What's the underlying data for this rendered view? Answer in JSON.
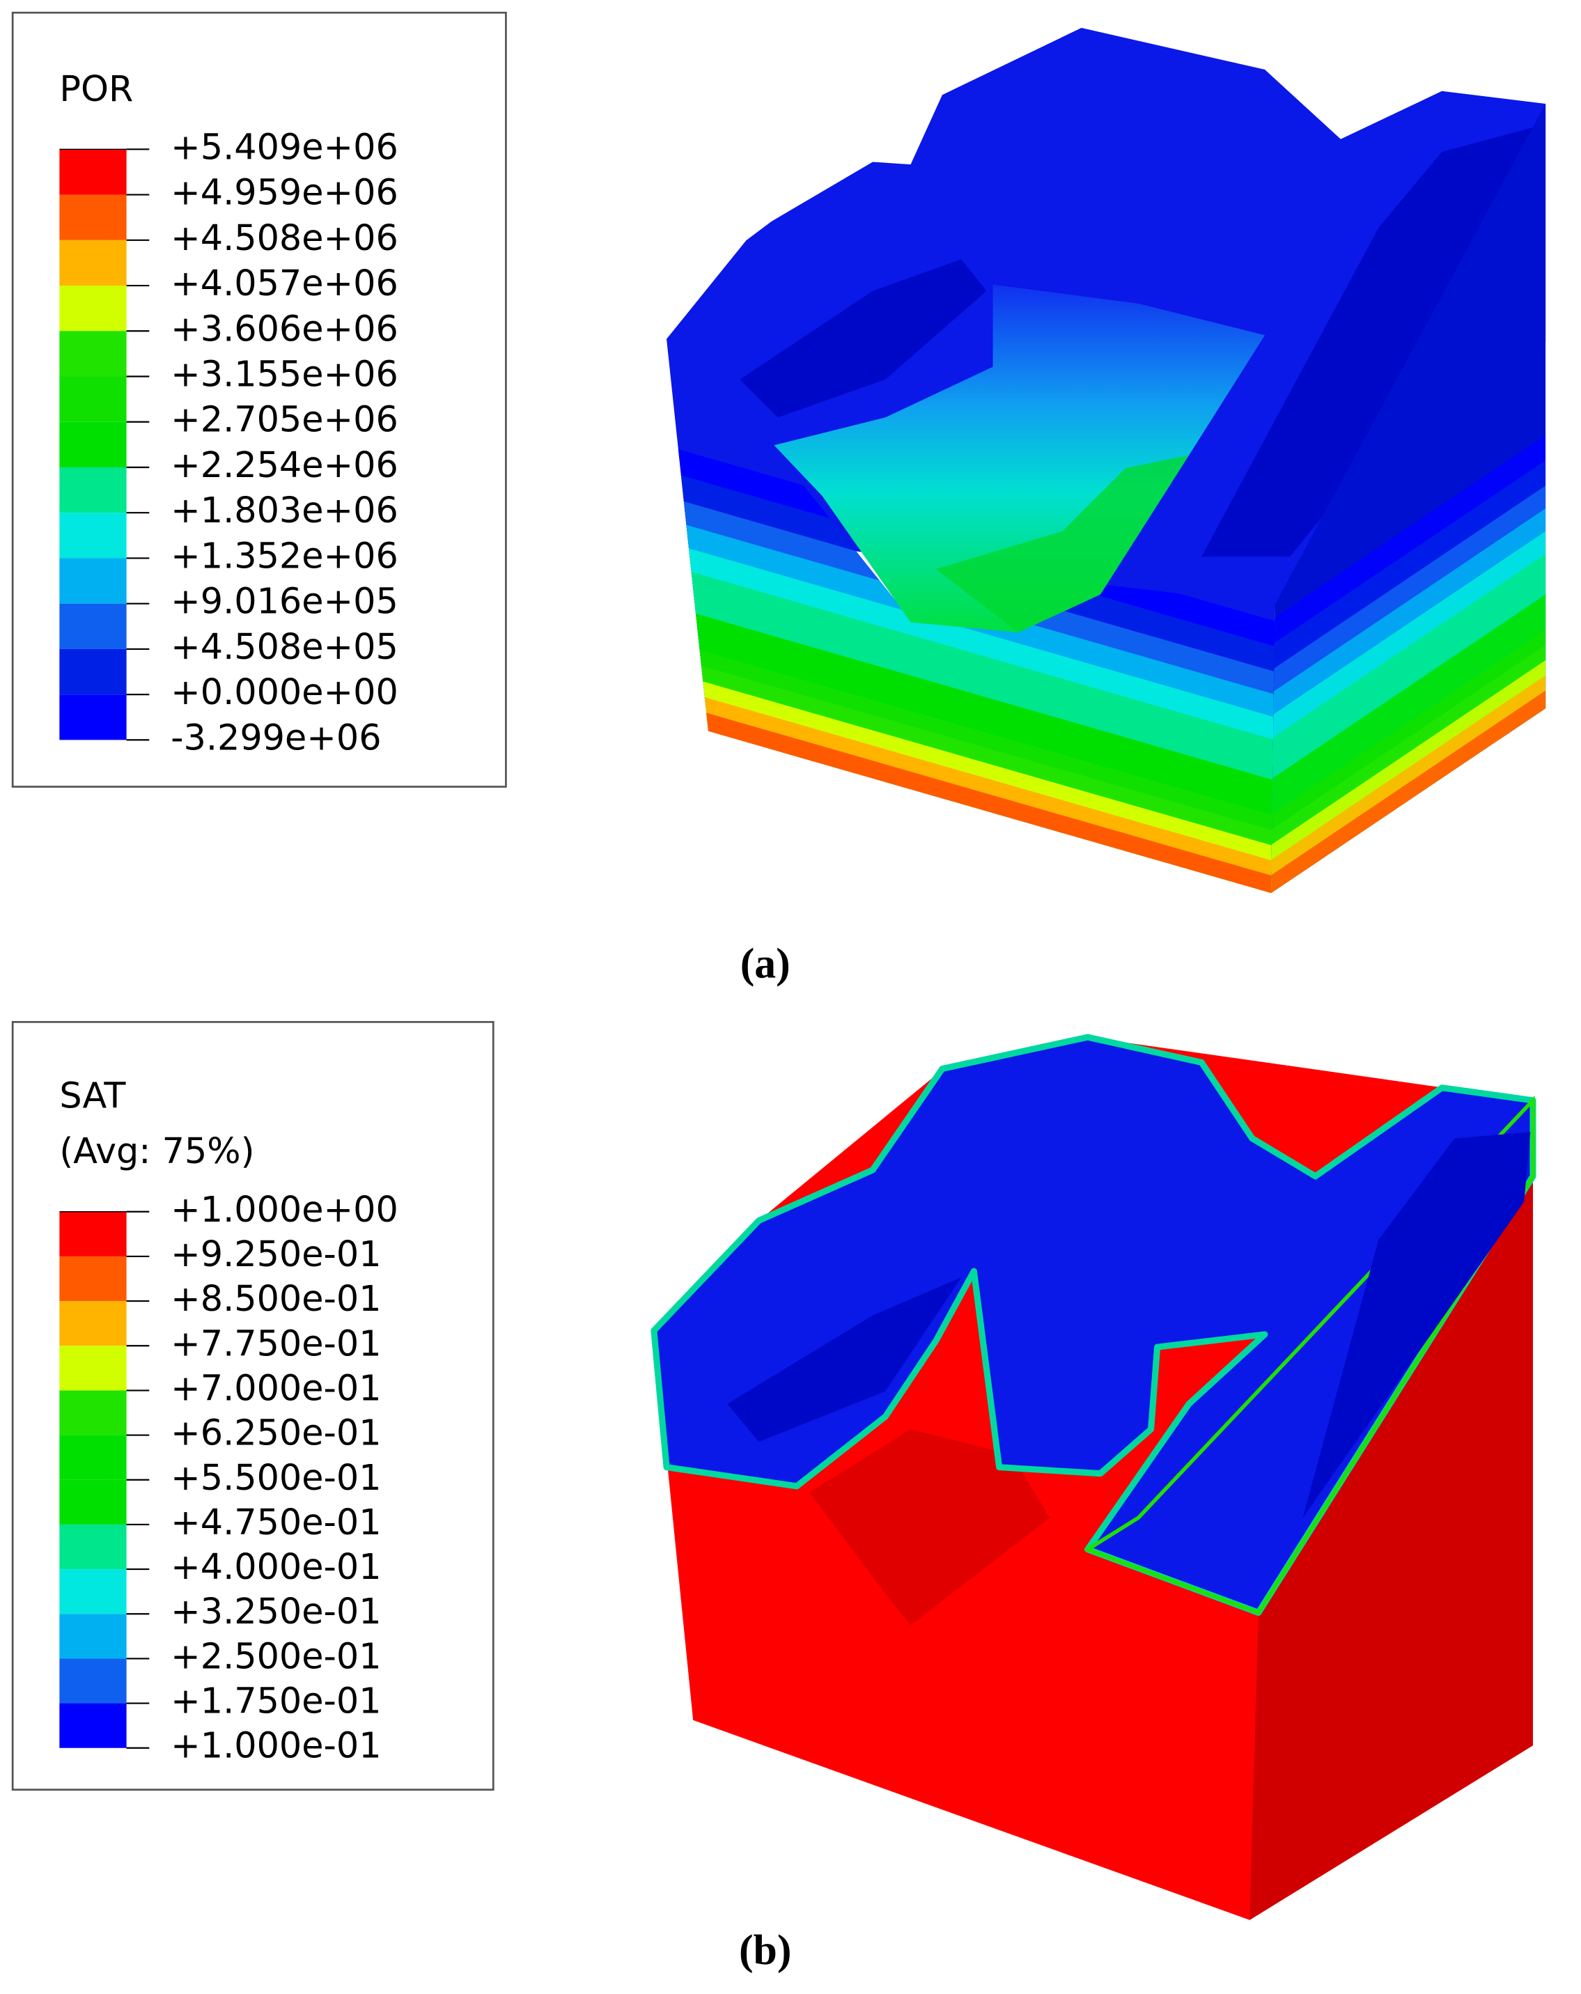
{
  "panels": [
    {
      "legend": {
        "title": "POR",
        "labels": [
          "+5.409e+06",
          "+4.959e+06",
          "+4.508e+06",
          "+4.057e+06",
          "+3.606e+06",
          "+3.155e+06",
          "+2.705e+06",
          "+2.254e+06",
          "+1.803e+06",
          "+1.352e+06",
          "+9.016e+05",
          "+4.508e+05",
          "+0.000e+00",
          "-3.299e+06"
        ],
        "colors": [
          "#ff0000",
          "#ff5a00",
          "#ffb400",
          "#d2ff00",
          "#20e400",
          "#10e000",
          "#00e000",
          "#00e68c",
          "#00e8e0",
          "#00b0f0",
          "#1060f0",
          "#0020e6",
          "#0000ff"
        ]
      },
      "caption": "(a)"
    },
    {
      "legend": {
        "title": "SAT",
        "subtitle": "(Avg: 75%)",
        "labels": [
          "+1.000e+00",
          "+9.250e-01",
          "+8.500e-01",
          "+7.750e-01",
          "+7.000e-01",
          "+6.250e-01",
          "+5.500e-01",
          "+4.750e-01",
          "+4.000e-01",
          "+3.250e-01",
          "+2.500e-01",
          "+1.750e-01",
          "+1.000e-01"
        ],
        "colors": [
          "#ff0000",
          "#ff5a00",
          "#ffb400",
          "#d2ff00",
          "#20e400",
          "#00e000",
          "#00e000",
          "#00e68c",
          "#00e8e0",
          "#00b0f0",
          "#1060f0",
          "#0000ff"
        ]
      },
      "caption": "(b)"
    }
  ]
}
